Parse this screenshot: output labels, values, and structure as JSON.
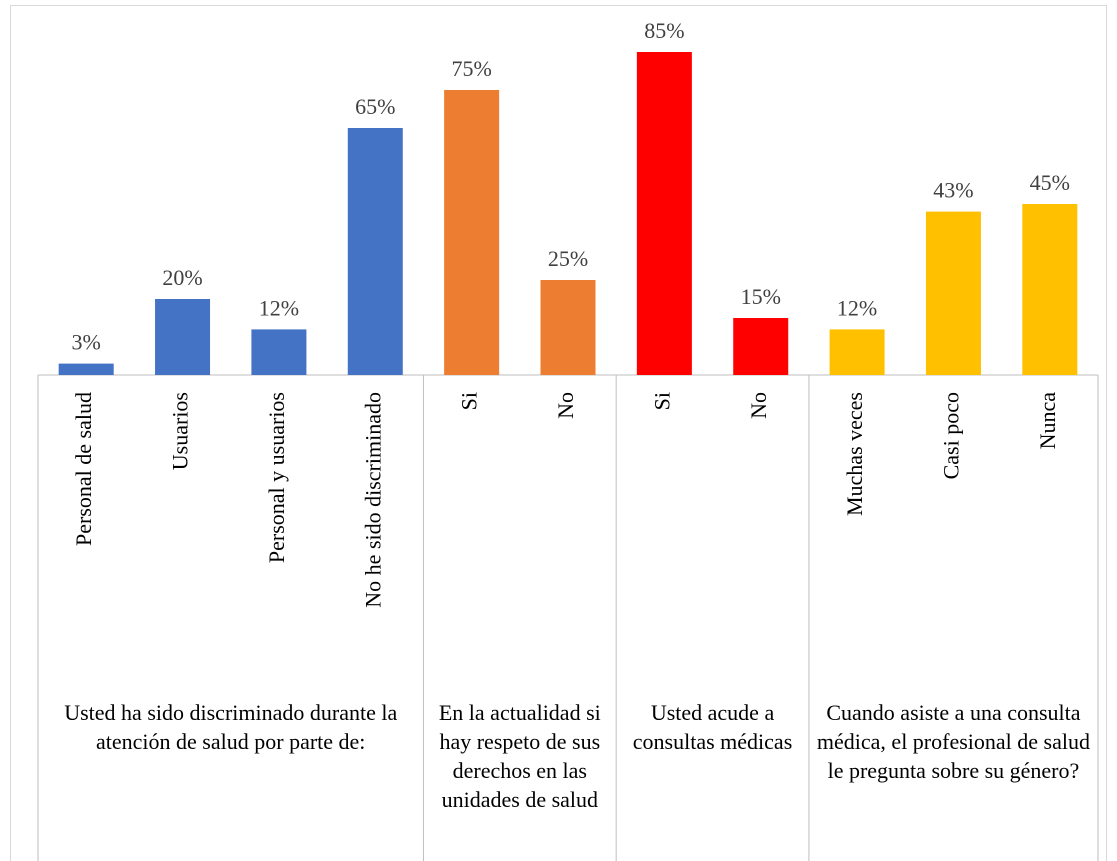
{
  "chart_data": {
    "type": "bar",
    "series": [
      {
        "name": "Usted ha sido discriminado durante la atención de salud por parte de:",
        "color": "#4472c4",
        "categories": [
          "Personal de salud",
          "Usuarios",
          "Personal y usuarios",
          "No he sido discriminado"
        ],
        "values": [
          3,
          20,
          12,
          65
        ],
        "value_labels": [
          "3%",
          "20%",
          "12%",
          "65%"
        ]
      },
      {
        "name": "En la actualidad si hay respeto de sus derechos en las unidades de salud",
        "color": "#ed7d31",
        "categories": [
          "Si",
          "No"
        ],
        "values": [
          75,
          25
        ],
        "value_labels": [
          "75%",
          "25%"
        ]
      },
      {
        "name": "Usted acude a consultas médicas",
        "color": "#ff0000",
        "categories": [
          "Si",
          "No"
        ],
        "values": [
          85,
          15
        ],
        "value_labels": [
          "85%",
          "15%"
        ]
      },
      {
        "name": "Cuando asiste a una consulta médica, el profesional de salud le pregunta sobre su género?",
        "color": "#ffc000",
        "categories": [
          "Muchas veces",
          "Casi poco",
          "Nunca"
        ],
        "values": [
          12,
          43,
          45
        ],
        "value_labels": [
          "12%",
          "43%",
          "45%"
        ]
      }
    ]
  }
}
